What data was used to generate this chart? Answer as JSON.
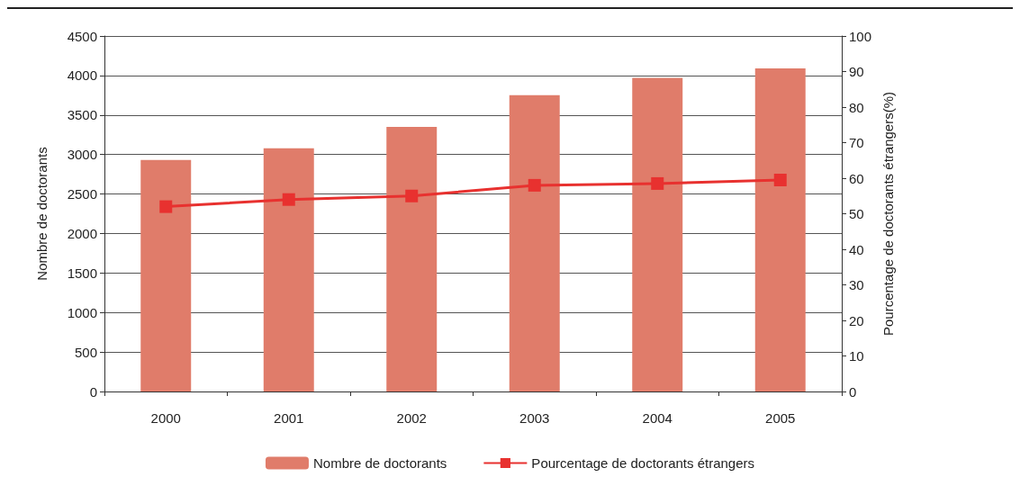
{
  "chart_data": {
    "type": "bar",
    "categories": [
      "2000",
      "2001",
      "2002",
      "2003",
      "2004",
      "2005"
    ],
    "series": [
      {
        "name": "Nombre de doctorants",
        "color": "#e07c6a",
        "values": [
          2930,
          3080,
          3350,
          3750,
          3970,
          4090
        ]
      },
      {
        "name": "Pourcentage de doctorants étrangers",
        "type": "line",
        "axis": "y2",
        "color": "#e8312f",
        "marker": "square",
        "values": [
          52,
          54,
          55,
          58,
          58.5,
          59.5
        ]
      }
    ],
    "ylabel": "Nombre de doctorants",
    "y2label": "Pourcentage de doctorants étrangers(%)",
    "ylim": [
      0,
      4500
    ],
    "yticks": [
      0,
      500,
      1000,
      1500,
      2000,
      2500,
      3000,
      3500,
      4000,
      4500
    ],
    "y2lim": [
      0,
      100
    ],
    "y2ticks": [
      0,
      10,
      20,
      30,
      40,
      50,
      60,
      70,
      80,
      90,
      100
    ],
    "grid": "y",
    "legend": "bottom"
  }
}
